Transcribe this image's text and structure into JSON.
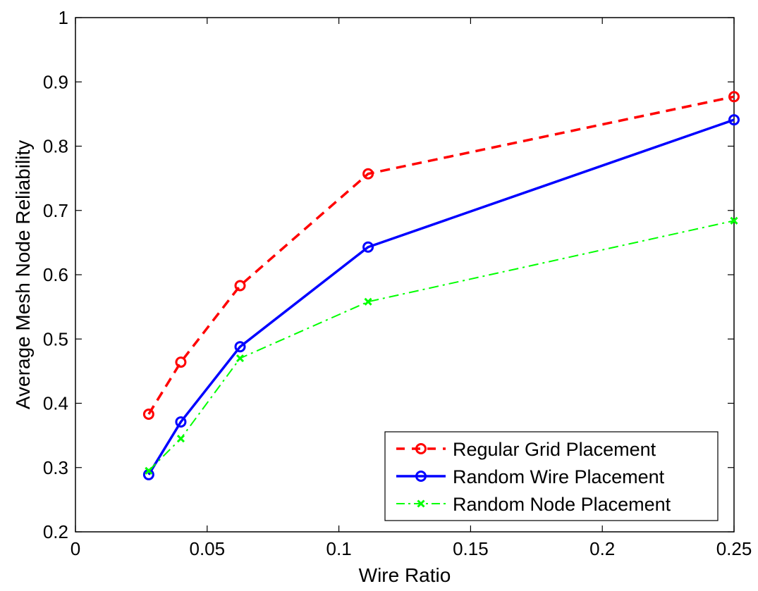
{
  "chart_data": {
    "type": "line",
    "xlabel": "Wire Ratio",
    "ylabel": "Average Mesh Node Reliability",
    "xlim": [
      0,
      0.25
    ],
    "ylim": [
      0.2,
      1
    ],
    "xticks": [
      0,
      0.05,
      0.1,
      0.15,
      0.2,
      0.25
    ],
    "xtick_labels": [
      "0",
      "0.05",
      "0.1",
      "0.15",
      "0.2",
      "0.25"
    ],
    "yticks": [
      0.2,
      0.3,
      0.4,
      0.5,
      0.6,
      0.7,
      0.8,
      0.9,
      1
    ],
    "ytick_labels": [
      "0.2",
      "0.3",
      "0.4",
      "0.5",
      "0.6",
      "0.7",
      "0.8",
      "0.9",
      "1"
    ],
    "grid": false,
    "legend_position": "bottom-right",
    "series": [
      {
        "name": "Regular Grid Placement",
        "color": "#ff0000",
        "line_style": "dashed",
        "marker": "circle",
        "x": [
          0.0278,
          0.04,
          0.0625,
          0.1111,
          0.25
        ],
        "y": [
          0.383,
          0.464,
          0.583,
          0.757,
          0.877
        ]
      },
      {
        "name": "Random Wire Placement",
        "color": "#0000ff",
        "line_style": "solid",
        "marker": "circle",
        "x": [
          0.0278,
          0.04,
          0.0625,
          0.1111,
          0.25
        ],
        "y": [
          0.289,
          0.371,
          0.488,
          0.643,
          0.841
        ]
      },
      {
        "name": "Random Node Placement",
        "color": "#00ff00",
        "line_style": "dashdot",
        "marker": "x",
        "x": [
          0.0278,
          0.04,
          0.0625,
          0.1111,
          0.25
        ],
        "y": [
          0.295,
          0.345,
          0.47,
          0.558,
          0.684
        ]
      }
    ]
  }
}
